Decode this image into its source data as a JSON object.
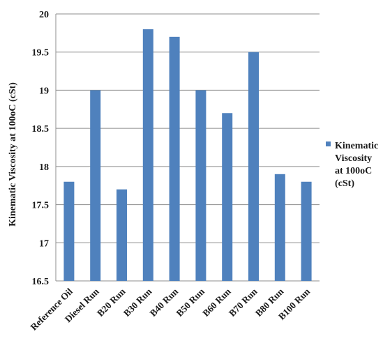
{
  "chart_data": {
    "type": "bar",
    "categories": [
      "Reference Oil",
      "Diesel Run",
      "B20 Run",
      "B30 Run",
      "B40 Run",
      "B50 Run",
      "B60 Run",
      "B70 Run",
      "B80 Run",
      "B100 Run"
    ],
    "series": [
      {
        "name": "Kinematic Viscosity at 100oC (cSt)",
        "values": [
          17.8,
          19.0,
          17.7,
          19.8,
          19.7,
          19.0,
          18.7,
          19.5,
          17.9,
          17.8
        ],
        "color": "#4f81bd"
      }
    ],
    "yticks": [
      "16.5",
      "17",
      "17.5",
      "18",
      "18.5",
      "19",
      "19.5",
      "20"
    ],
    "ylim": [
      16.5,
      20
    ],
    "ylabel": "Kinematic Viscosity at 100oC (cSt)",
    "xlabel": "",
    "title": "",
    "grid": true,
    "legend": {
      "position": "right",
      "lines": [
        "Kinematic",
        "Viscosity",
        "at 100oC",
        "(cSt)"
      ]
    }
  }
}
